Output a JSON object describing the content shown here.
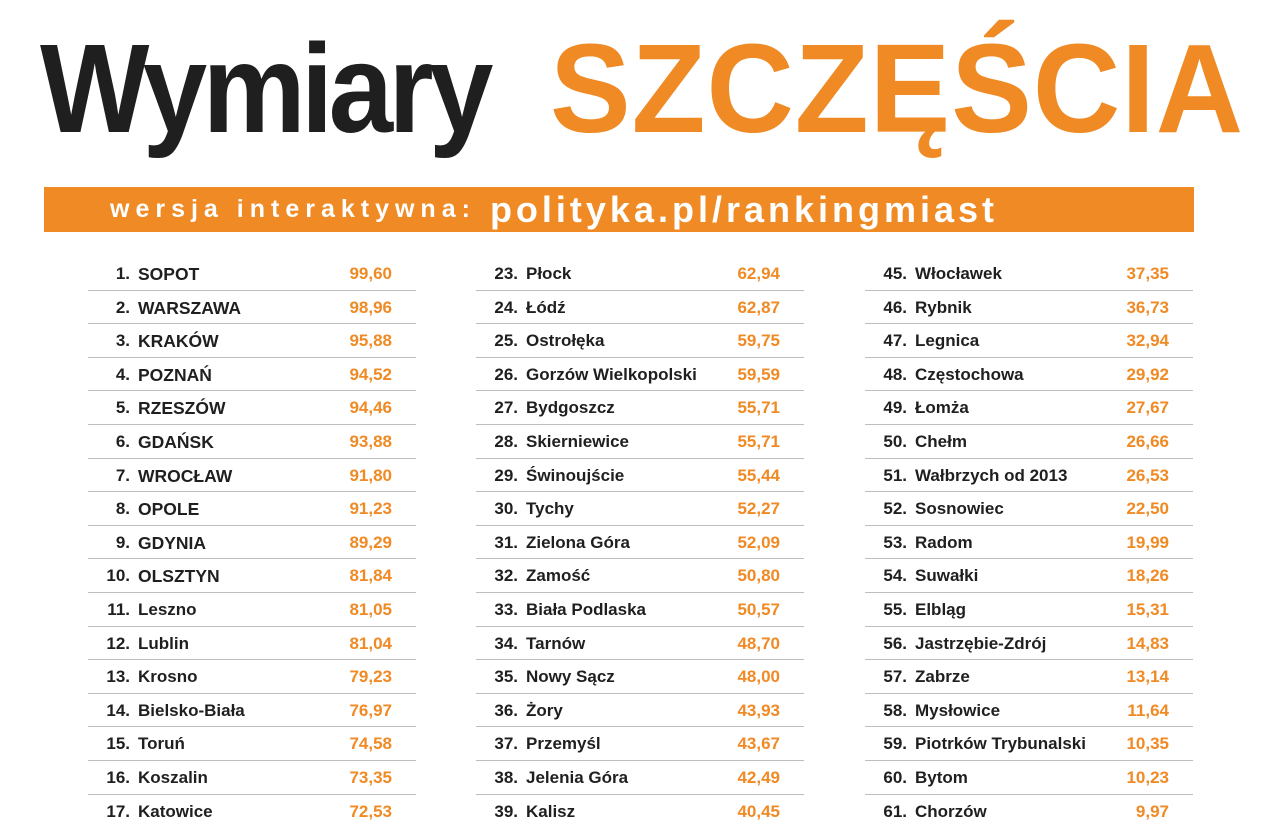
{
  "header": {
    "title_part1": "Wymiary",
    "title_part2": "SZCZĘŚCIA",
    "banner_lead": "wersja interaktywna:",
    "banner_url": "polityka.pl/rankingmiast"
  },
  "colors": {
    "accent": "#f08a24",
    "text": "#1f1f1f",
    "divider": "#bdbdbd"
  },
  "ranking": [
    [
      {
        "rank": "1.",
        "city": "SOPOT",
        "score": "99,60",
        "caps": true
      },
      {
        "rank": "2.",
        "city": "WARSZAWA",
        "score": "98,96",
        "caps": true
      },
      {
        "rank": "3.",
        "city": "KRAKÓW",
        "score": "95,88",
        "caps": true
      },
      {
        "rank": "4.",
        "city": "POZNAŃ",
        "score": "94,52",
        "caps": true
      },
      {
        "rank": "5.",
        "city": "RZESZÓW",
        "score": "94,46",
        "caps": true
      },
      {
        "rank": "6.",
        "city": "GDAŃSK",
        "score": "93,88",
        "caps": true
      },
      {
        "rank": "7.",
        "city": "WROCŁAW",
        "score": "91,80",
        "caps": true
      },
      {
        "rank": "8.",
        "city": "OPOLE",
        "score": "91,23",
        "caps": true
      },
      {
        "rank": "9.",
        "city": "GDYNIA",
        "score": "89,29",
        "caps": true
      },
      {
        "rank": "10.",
        "city": "OLSZTYN",
        "score": "81,84",
        "caps": true
      },
      {
        "rank": "11.",
        "city": "Leszno",
        "score": "81,05"
      },
      {
        "rank": "12.",
        "city": "Lublin",
        "score": "81,04"
      },
      {
        "rank": "13.",
        "city": "Krosno",
        "score": "79,23"
      },
      {
        "rank": "14.",
        "city": "Bielsko-Biała",
        "score": "76,97"
      },
      {
        "rank": "15.",
        "city": "Toruń",
        "score": "74,58"
      },
      {
        "rank": "16.",
        "city": "Koszalin",
        "score": "73,35"
      },
      {
        "rank": "17.",
        "city": "Katowice",
        "score": "72,53"
      }
    ],
    [
      {
        "rank": "23.",
        "city": "Płock",
        "score": "62,94"
      },
      {
        "rank": "24.",
        "city": "Łódź",
        "score": "62,87"
      },
      {
        "rank": "25.",
        "city": "Ostrołęka",
        "score": "59,75"
      },
      {
        "rank": "26.",
        "city": "Gorzów Wielkopolski",
        "score": "59,59"
      },
      {
        "rank": "27.",
        "city": "Bydgoszcz",
        "score": "55,71"
      },
      {
        "rank": "28.",
        "city": "Skierniewice",
        "score": "55,71"
      },
      {
        "rank": "29.",
        "city": "Świnoujście",
        "score": "55,44"
      },
      {
        "rank": "30.",
        "city": "Tychy",
        "score": "52,27"
      },
      {
        "rank": "31.",
        "city": "Zielona Góra",
        "score": "52,09"
      },
      {
        "rank": "32.",
        "city": "Zamość",
        "score": "50,80"
      },
      {
        "rank": "33.",
        "city": "Biała Podlaska",
        "score": "50,57"
      },
      {
        "rank": "34.",
        "city": "Tarnów",
        "score": "48,70"
      },
      {
        "rank": "35.",
        "city": "Nowy Sącz",
        "score": "48,00"
      },
      {
        "rank": "36.",
        "city": "Żory",
        "score": "43,93"
      },
      {
        "rank": "37.",
        "city": "Przemyśl",
        "score": "43,67"
      },
      {
        "rank": "38.",
        "city": "Jelenia Góra",
        "score": "42,49"
      },
      {
        "rank": "39.",
        "city": "Kalisz",
        "score": "40,45"
      }
    ],
    [
      {
        "rank": "45.",
        "city": "Włocławek",
        "score": "37,35"
      },
      {
        "rank": "46.",
        "city": "Rybnik",
        "score": "36,73"
      },
      {
        "rank": "47.",
        "city": "Legnica",
        "score": "32,94"
      },
      {
        "rank": "48.",
        "city": "Częstochowa",
        "score": "29,92"
      },
      {
        "rank": "49.",
        "city": "Łomża",
        "score": "27,67"
      },
      {
        "rank": "50.",
        "city": "Chełm",
        "score": "26,66"
      },
      {
        "rank": "51.",
        "city": "Wałbrzych od 2013",
        "score": "26,53"
      },
      {
        "rank": "52.",
        "city": "Sosnowiec",
        "score": "22,50"
      },
      {
        "rank": "53.",
        "city": "Radom",
        "score": "19,99"
      },
      {
        "rank": "54.",
        "city": "Suwałki",
        "score": "18,26"
      },
      {
        "rank": "55.",
        "city": "Elbląg",
        "score": "15,31"
      },
      {
        "rank": "56.",
        "city": "Jastrzębie-Zdrój",
        "score": "14,83"
      },
      {
        "rank": "57.",
        "city": "Zabrze",
        "score": "13,14"
      },
      {
        "rank": "58.",
        "city": "Mysłowice",
        "score": "11,64"
      },
      {
        "rank": "59.",
        "city": "Piotrków Trybunalski",
        "score": "10,35"
      },
      {
        "rank": "60.",
        "city": "Bytom",
        "score": "10,23"
      },
      {
        "rank": "61.",
        "city": "Chorzów",
        "score": "9,97"
      }
    ]
  ]
}
